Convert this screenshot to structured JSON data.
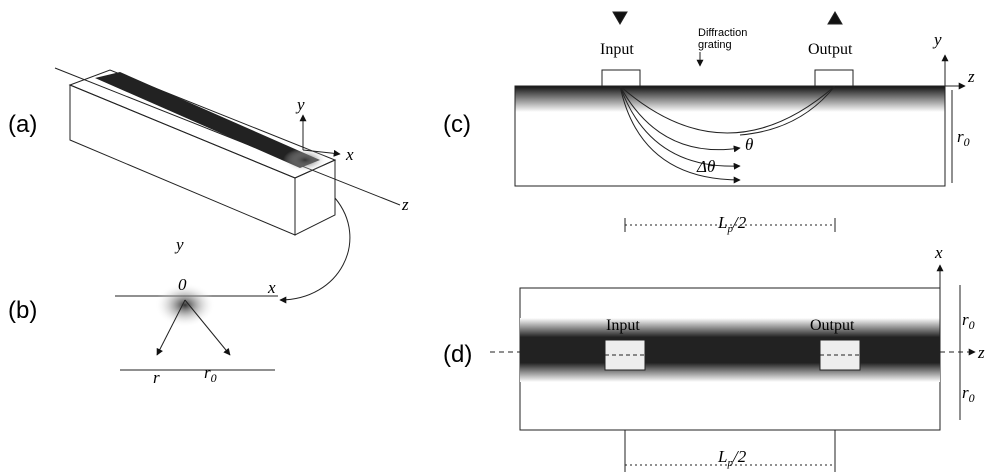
{
  "panel_a": {
    "label": "(a)",
    "axes": {
      "y": "y",
      "x": "x",
      "z": "z"
    }
  },
  "panel_b": {
    "label": "(b)",
    "axes": {
      "y": "y",
      "x": "x"
    },
    "origin": "0",
    "r": "r",
    "r0": {
      "base": "r",
      "sub": "0"
    }
  },
  "panel_c": {
    "label": "(c)",
    "input": "Input",
    "output": "Output",
    "grating": [
      "Diffraction",
      "grating"
    ],
    "axes": {
      "y": "y",
      "z": "z"
    },
    "theta": "θ",
    "delta_theta": "Δθ",
    "r0": {
      "base": "r",
      "sub": "0"
    },
    "half_length": {
      "base": "L",
      "sub": "p",
      "rest": "/2"
    }
  },
  "panel_d": {
    "label": "(d)",
    "input": "Input",
    "output": "Output",
    "axes": {
      "x": "x",
      "z": "z"
    },
    "r0_upper": {
      "base": "r",
      "sub": "0"
    },
    "r0_lower": {
      "base": "r",
      "sub": "0"
    },
    "half_length": {
      "base": "L",
      "sub": "p",
      "rest": "/2"
    }
  }
}
